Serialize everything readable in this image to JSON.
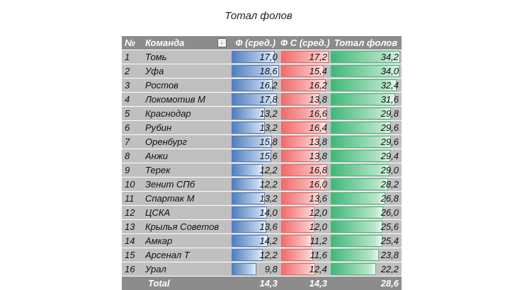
{
  "title": "Тотал фолов",
  "headers": {
    "no": "№",
    "team": "Команда",
    "f": "Ф (сред.)",
    "fc": "Ф С (сред.)",
    "total": "Тотал фолов"
  },
  "filter_icon": "sort-filter-icon",
  "colors": {
    "f_bar": "#4f7fc0",
    "fc_bar": "#f36b6b",
    "total_bar": "#3fb878",
    "header": "#8c8c8c",
    "row": "#c0c0c0"
  },
  "rows": [
    {
      "no": "1",
      "team": "Томь",
      "f": "17,0",
      "fc": "17,2",
      "total": "34,2"
    },
    {
      "no": "2",
      "team": "Уфа",
      "f": "18,6",
      "fc": "15,4",
      "total": "34,0"
    },
    {
      "no": "3",
      "team": "Ростов",
      "f": "16,2",
      "fc": "16,2",
      "total": "32,4"
    },
    {
      "no": "4",
      "team": "Локомотив М",
      "f": "17,8",
      "fc": "13,8",
      "total": "31,6"
    },
    {
      "no": "5",
      "team": "Краснодар",
      "f": "13,2",
      "fc": "16,6",
      "total": "29,8"
    },
    {
      "no": "6",
      "team": "Рубин",
      "f": "13,2",
      "fc": "16,4",
      "total": "29,6"
    },
    {
      "no": "7",
      "team": "Оренбург",
      "f": "15,8",
      "fc": "13,8",
      "total": "29,6"
    },
    {
      "no": "8",
      "team": "Анжи",
      "f": "15,6",
      "fc": "13,8",
      "total": "29,4"
    },
    {
      "no": "9",
      "team": "Терек",
      "f": "12,2",
      "fc": "16,8",
      "total": "29,0"
    },
    {
      "no": "10",
      "team": "Зенит СПб",
      "f": "12,2",
      "fc": "16,0",
      "total": "28,2"
    },
    {
      "no": "11",
      "team": "Спартак М",
      "f": "13,2",
      "fc": "13,6",
      "total": "26,8"
    },
    {
      "no": "12",
      "team": "ЦСКА",
      "f": "14,0",
      "fc": "12,0",
      "total": "26,0"
    },
    {
      "no": "13",
      "team": "Крылья Советов",
      "f": "13,6",
      "fc": "12,0",
      "total": "25,6"
    },
    {
      "no": "14",
      "team": "Амкар",
      "f": "14,2",
      "fc": "11,2",
      "total": "25,4"
    },
    {
      "no": "15",
      "team": "Арсенал Т",
      "f": "12,2",
      "fc": "11,6",
      "total": "23,8"
    },
    {
      "no": "16",
      "team": "Урал",
      "f": "9,8",
      "fc": "12,4",
      "total": "22,2"
    }
  ],
  "footer": {
    "label": "Total",
    "f": "14,3",
    "fc": "14,3",
    "total": "28,6"
  }
}
